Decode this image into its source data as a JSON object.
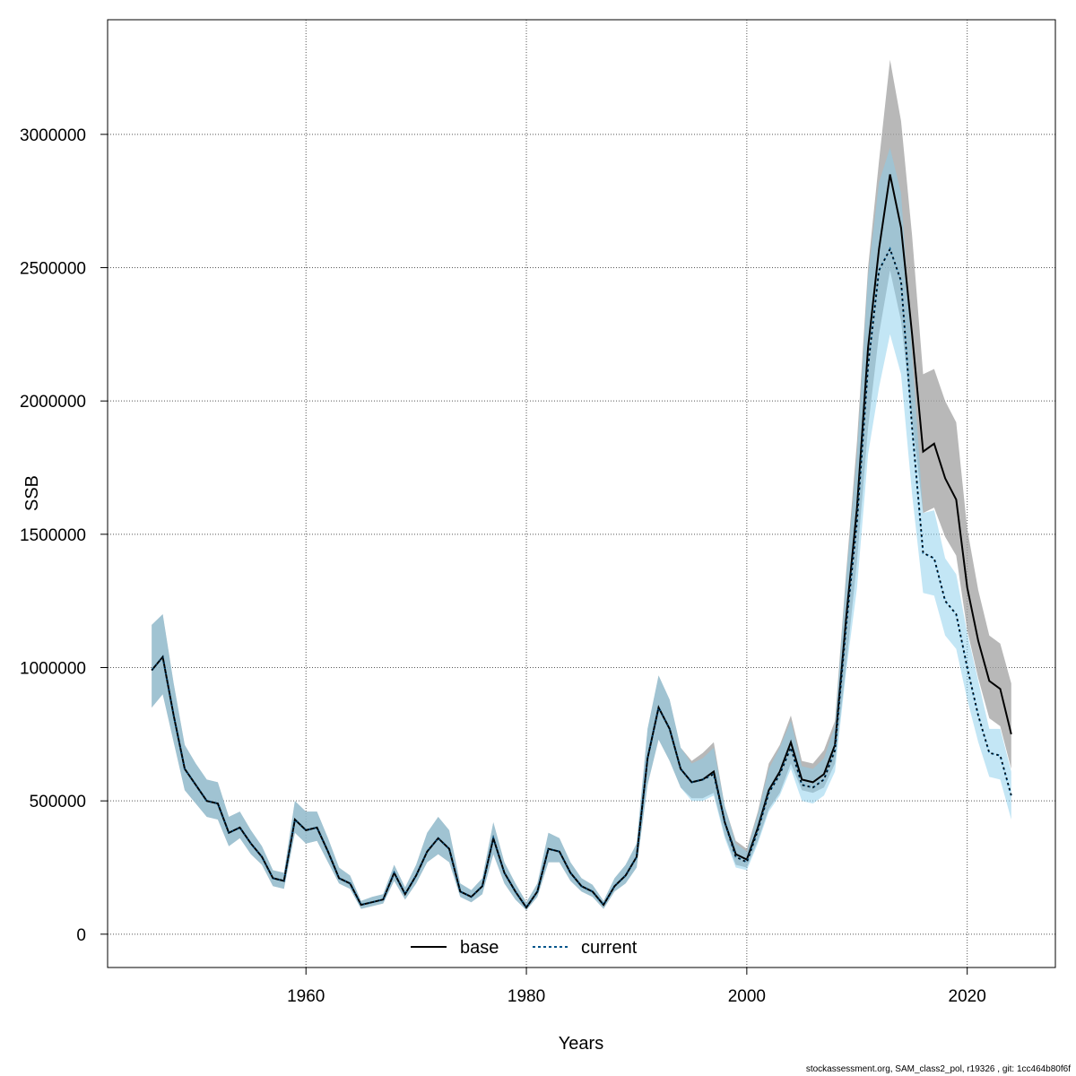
{
  "chart_data": {
    "type": "line",
    "xlabel": "Years",
    "ylabel": "SSB",
    "xlim": [
      1942,
      2028
    ],
    "ylim": [
      -125000,
      3430000
    ],
    "x_ticks": [
      1960,
      1980,
      2000,
      2020
    ],
    "y_ticks": [
      0,
      500000,
      1000000,
      1500000,
      2000000,
      2500000,
      3000000
    ],
    "grid": true,
    "legend_position": "bottom-center",
    "colors": {
      "base_line": "#000000",
      "base_band": "#a0a0a0",
      "current_line": "#00558b",
      "current_band": "#87ceeb",
      "grid": "#555555"
    },
    "x": [
      1946,
      1947,
      1948,
      1949,
      1950,
      1951,
      1952,
      1953,
      1954,
      1955,
      1956,
      1957,
      1958,
      1959,
      1960,
      1961,
      1962,
      1963,
      1964,
      1965,
      1966,
      1967,
      1968,
      1969,
      1970,
      1971,
      1972,
      1973,
      1974,
      1975,
      1976,
      1977,
      1978,
      1979,
      1980,
      1981,
      1982,
      1983,
      1984,
      1985,
      1986,
      1987,
      1988,
      1989,
      1990,
      1991,
      1992,
      1993,
      1994,
      1995,
      1996,
      1997,
      1998,
      1999,
      2000,
      2001,
      2002,
      2003,
      2004,
      2005,
      2006,
      2007,
      2008,
      2009,
      2010,
      2011,
      2012,
      2013,
      2014,
      2015,
      2016,
      2017,
      2018,
      2019,
      2020,
      2021,
      2022,
      2023,
      2024
    ],
    "series": [
      {
        "name": "base",
        "values": [
          990000,
          1040000,
          820000,
          620000,
          560000,
          500000,
          490000,
          380000,
          400000,
          340000,
          290000,
          210000,
          200000,
          430000,
          390000,
          400000,
          310000,
          210000,
          190000,
          110000,
          120000,
          130000,
          230000,
          150000,
          220000,
          310000,
          360000,
          320000,
          160000,
          140000,
          180000,
          360000,
          230000,
          160000,
          100000,
          160000,
          320000,
          310000,
          230000,
          180000,
          160000,
          110000,
          180000,
          220000,
          290000,
          660000,
          850000,
          770000,
          620000,
          570000,
          580000,
          610000,
          420000,
          300000,
          280000,
          400000,
          540000,
          610000,
          720000,
          580000,
          570000,
          600000,
          710000,
          1180000,
          1600000,
          2200000,
          2570000,
          2850000,
          2650000,
          2250000,
          1810000,
          1840000,
          1710000,
          1630000,
          1300000,
          1100000,
          950000,
          920000,
          750000
        ],
        "lower": [
          850000,
          900000,
          720000,
          540000,
          490000,
          440000,
          430000,
          330000,
          360000,
          300000,
          260000,
          180000,
          170000,
          380000,
          340000,
          350000,
          270000,
          190000,
          170000,
          95000,
          105000,
          115000,
          200000,
          130000,
          190000,
          270000,
          300000,
          270000,
          140000,
          120000,
          150000,
          300000,
          190000,
          130000,
          90000,
          140000,
          270000,
          270000,
          200000,
          160000,
          140000,
          95000,
          160000,
          190000,
          250000,
          560000,
          730000,
          650000,
          550000,
          510000,
          510000,
          530000,
          370000,
          260000,
          250000,
          350000,
          470000,
          530000,
          640000,
          540000,
          530000,
          550000,
          640000,
          1000000,
          1400000,
          1900000,
          2250000,
          2490000,
          2300000,
          1930000,
          1580000,
          1600000,
          1490000,
          1420000,
          1140000,
          960000,
          810000,
          780000,
          620000
        ],
        "upper": [
          1160000,
          1200000,
          940000,
          710000,
          640000,
          580000,
          570000,
          440000,
          460000,
          390000,
          330000,
          240000,
          230000,
          500000,
          460000,
          460000,
          360000,
          250000,
          220000,
          125000,
          140000,
          150000,
          260000,
          175000,
          260000,
          380000,
          440000,
          390000,
          190000,
          165000,
          210000,
          420000,
          270000,
          190000,
          120000,
          190000,
          380000,
          360000,
          270000,
          210000,
          185000,
          125000,
          210000,
          260000,
          340000,
          770000,
          970000,
          880000,
          700000,
          650000,
          680000,
          720000,
          480000,
          350000,
          320000,
          460000,
          640000,
          710000,
          820000,
          650000,
          640000,
          690000,
          800000,
          1350000,
          1850000,
          2500000,
          2900000,
          3280000,
          3050000,
          2620000,
          2100000,
          2120000,
          2000000,
          1920000,
          1520000,
          1290000,
          1120000,
          1090000,
          940000
        ]
      },
      {
        "name": "current",
        "values": [
          990000,
          1040000,
          820000,
          620000,
          560000,
          500000,
          490000,
          380000,
          400000,
          340000,
          290000,
          210000,
          200000,
          430000,
          390000,
          400000,
          310000,
          210000,
          190000,
          110000,
          120000,
          130000,
          230000,
          150000,
          220000,
          310000,
          360000,
          320000,
          160000,
          140000,
          180000,
          360000,
          230000,
          160000,
          100000,
          160000,
          320000,
          310000,
          230000,
          180000,
          160000,
          110000,
          180000,
          220000,
          290000,
          660000,
          850000,
          770000,
          620000,
          570000,
          580000,
          600000,
          420000,
          290000,
          270000,
          390000,
          530000,
          600000,
          700000,
          560000,
          550000,
          580000,
          690000,
          1150000,
          1550000,
          2130000,
          2490000,
          2570000,
          2450000,
          1900000,
          1430000,
          1410000,
          1250000,
          1200000,
          1000000,
          820000,
          680000,
          670000,
          520000
        ],
        "lower": [
          850000,
          900000,
          720000,
          540000,
          490000,
          440000,
          430000,
          330000,
          360000,
          300000,
          260000,
          180000,
          170000,
          380000,
          340000,
          350000,
          270000,
          190000,
          170000,
          95000,
          105000,
          115000,
          200000,
          130000,
          190000,
          270000,
          300000,
          270000,
          140000,
          120000,
          150000,
          300000,
          190000,
          130000,
          90000,
          140000,
          270000,
          270000,
          200000,
          160000,
          140000,
          95000,
          160000,
          190000,
          250000,
          560000,
          730000,
          650000,
          550000,
          500000,
          500000,
          520000,
          360000,
          250000,
          240000,
          340000,
          460000,
          520000,
          620000,
          500000,
          490000,
          520000,
          610000,
          980000,
          1300000,
          1800000,
          2050000,
          2250000,
          2100000,
          1650000,
          1280000,
          1270000,
          1120000,
          1070000,
          880000,
          720000,
          590000,
          580000,
          430000
        ],
        "upper": [
          1160000,
          1200000,
          940000,
          710000,
          640000,
          580000,
          570000,
          440000,
          460000,
          390000,
          330000,
          240000,
          230000,
          500000,
          460000,
          460000,
          360000,
          250000,
          220000,
          125000,
          140000,
          150000,
          260000,
          175000,
          260000,
          380000,
          440000,
          390000,
          190000,
          165000,
          210000,
          420000,
          270000,
          190000,
          120000,
          190000,
          380000,
          360000,
          270000,
          210000,
          185000,
          125000,
          210000,
          260000,
          340000,
          770000,
          970000,
          880000,
          700000,
          640000,
          660000,
          700000,
          480000,
          340000,
          310000,
          450000,
          620000,
          700000,
          800000,
          630000,
          620000,
          660000,
          780000,
          1330000,
          1800000,
          2470000,
          2820000,
          2950000,
          2780000,
          2180000,
          1580000,
          1590000,
          1410000,
          1350000,
          1130000,
          950000,
          770000,
          770000,
          610000
        ]
      }
    ]
  },
  "footer": "stockassessment.org, SAM_class2_pol, r19326 , git: 1cc464b80f6f"
}
